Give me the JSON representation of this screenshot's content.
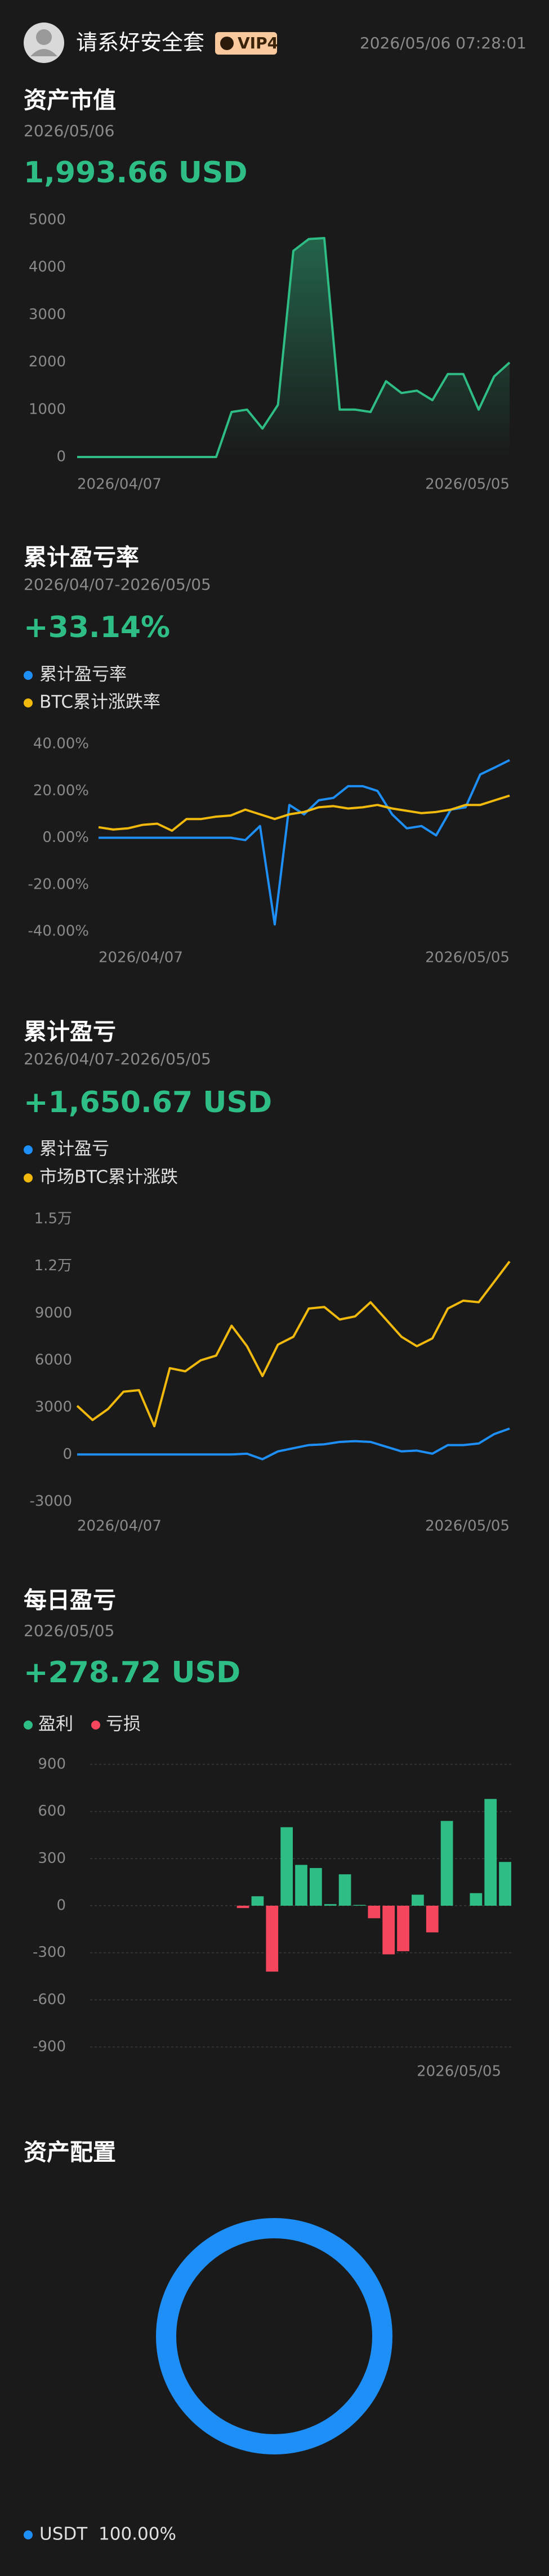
{
  "header": {
    "username": "请系好安全套",
    "badge": "VIP4",
    "datetime": "2026/05/06 07:28:01"
  },
  "chart_data": [
    {
      "type": "area",
      "title": "资产市值",
      "subtitle": "2026/05/06",
      "headline": "1,993.66 USD",
      "categories": [
        "2026/04/07",
        null,
        null,
        null,
        null,
        null,
        null,
        null,
        null,
        null,
        null,
        null,
        null,
        null,
        null,
        null,
        null,
        null,
        null,
        null,
        null,
        null,
        null,
        null,
        null,
        null,
        null,
        null,
        "2026/05/05"
      ],
      "values": [
        0,
        0,
        0,
        0,
        0,
        0,
        0,
        0,
        0,
        0,
        950,
        1000,
        600,
        1100,
        4350,
        4600,
        4620,
        1000,
        1000,
        950,
        1600,
        1350,
        1400,
        1200,
        1750,
        1750,
        1000,
        1700,
        1993.66
      ],
      "color": "#2ebd85",
      "ylim": [
        0,
        5000
      ],
      "yticks": [
        0,
        1000,
        2000,
        3000,
        4000,
        5000
      ],
      "grid": false
    },
    {
      "type": "line",
      "title": "累计盈亏率",
      "subtitle": "2026/04/07-2026/05/05",
      "headline": "+33.14%",
      "categories": [
        "2026/04/07",
        null,
        null,
        null,
        null,
        null,
        null,
        null,
        null,
        null,
        null,
        null,
        null,
        null,
        null,
        null,
        null,
        null,
        null,
        null,
        null,
        null,
        null,
        null,
        null,
        null,
        null,
        null,
        "2026/05/05"
      ],
      "series": [
        {
          "name": "累计盈亏率",
          "color": "#1e8ff7",
          "values": [
            0,
            0,
            0,
            0,
            0,
            0,
            0,
            0,
            0,
            0,
            -1,
            5,
            -37,
            14,
            10,
            16,
            17,
            22,
            22,
            20,
            10,
            4,
            5,
            1,
            12,
            13,
            27,
            30,
            33.14
          ]
        },
        {
          "name": "BTC累计涨跌率",
          "color": "#f0b90b",
          "values": [
            4.5,
            3.5,
            4,
            5.5,
            6,
            3,
            8,
            8,
            9,
            9.5,
            12,
            10,
            8,
            10,
            11,
            13,
            13.5,
            12.5,
            13,
            14,
            12.5,
            11.5,
            10.5,
            11,
            12,
            14,
            14,
            16,
            18
          ]
        }
      ],
      "ylim": [
        -40,
        40
      ],
      "yticks": [
        {
          "value": 40,
          "label": "40.00%"
        },
        {
          "value": 20,
          "label": "20.00%"
        },
        {
          "value": 0,
          "label": "0.00%"
        },
        {
          "value": -20,
          "label": "-20.00%"
        },
        {
          "value": -40,
          "label": "-40.00%"
        }
      ],
      "grid": false
    },
    {
      "type": "line",
      "title": "累计盈亏",
      "subtitle": "2026/04/07-2026/05/05",
      "headline": "+1,650.67 USD",
      "categories": [
        "2026/04/07",
        null,
        null,
        null,
        null,
        null,
        null,
        null,
        null,
        null,
        null,
        null,
        null,
        null,
        null,
        null,
        null,
        null,
        null,
        null,
        null,
        null,
        null,
        null,
        null,
        null,
        null,
        null,
        "2026/05/05"
      ],
      "series": [
        {
          "name": "累计盈亏",
          "color": "#1e8ff7",
          "values": [
            0,
            0,
            0,
            0,
            0,
            0,
            0,
            0,
            0,
            0,
            0,
            50,
            -300,
            200,
            400,
            600,
            650,
            800,
            850,
            800,
            500,
            200,
            250,
            50,
            600,
            600,
            700,
            1300,
            1650.67
          ]
        },
        {
          "name": "市场BTC累计涨跌",
          "color": "#f0b90b",
          "values": [
            3100,
            2200,
            2900,
            4000,
            4100,
            1800,
            5500,
            5300,
            6000,
            6300,
            8200,
            6900,
            5000,
            7000,
            7500,
            9300,
            9400,
            8600,
            8800,
            9700,
            8600,
            7500,
            6900,
            7400,
            9300,
            9800,
            9700,
            11000,
            12300
          ]
        }
      ],
      "ylim": [
        -3000,
        15000
      ],
      "yticks": [
        -3000,
        0,
        3000,
        6000,
        9000,
        {
          "value": 12000,
          "label": "1.2万"
        },
        {
          "value": 15000,
          "label": "1.5万"
        }
      ],
      "grid": false
    },
    {
      "type": "bar",
      "title": "每日盈亏",
      "subtitle": "2026/05/05",
      "headline": "+278.72 USD",
      "categories": [
        null,
        null,
        null,
        null,
        null,
        null,
        null,
        null,
        null,
        null,
        null,
        null,
        null,
        null,
        null,
        null,
        null,
        null,
        null,
        null,
        null,
        null,
        null,
        null,
        null,
        null,
        null,
        null,
        "2026/05/05"
      ],
      "values": [
        0,
        0,
        0,
        0,
        0,
        0,
        0,
        0,
        0,
        0,
        -15,
        60,
        -420,
        500,
        260,
        240,
        10,
        200,
        5,
        -80,
        -310,
        -290,
        70,
        -170,
        540,
        0,
        80,
        680,
        278.72
      ],
      "legend": [
        {
          "name": "盈利",
          "color": "#2ebd85"
        },
        {
          "name": "亏损",
          "color": "#f6465d"
        }
      ],
      "ylim": [
        -900,
        900
      ],
      "yticks": [
        900,
        600,
        300,
        0,
        -300,
        -600,
        -900
      ],
      "grid": true
    },
    {
      "type": "pie",
      "title": "资产配置",
      "categories": [
        "USDT"
      ],
      "values": [
        100
      ],
      "value_labels": [
        "100.00%"
      ],
      "colors": [
        "#1e8ff7"
      ]
    }
  ]
}
